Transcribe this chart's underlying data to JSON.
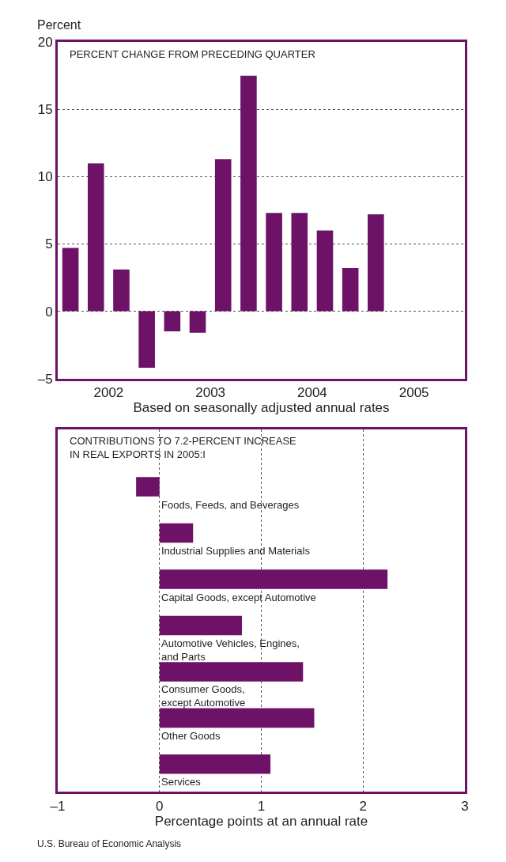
{
  "chart_data": [
    {
      "type": "bar",
      "title": "PERCENT CHANGE FROM PRECEDING QUARTER",
      "ylabel": "Percent",
      "xlabel": "Based on seasonally adjusted annual rates",
      "x": [
        2002.125,
        2002.375,
        2002.625,
        2002.875,
        2003.125,
        2003.375,
        2003.625,
        2003.875,
        2004.125,
        2004.375,
        2004.625,
        2004.875,
        2005.125
      ],
      "values": [
        4.7,
        11.0,
        3.1,
        -4.2,
        -1.5,
        -1.6,
        11.3,
        17.5,
        7.3,
        7.3,
        6.0,
        3.2,
        7.2
      ],
      "color": "#6d1266",
      "xlim": [
        2002,
        2006
      ],
      "xticks": [
        {
          "value": 2002.5,
          "label": "2002"
        },
        {
          "value": 2003.5,
          "label": "2003"
        },
        {
          "value": 2004.5,
          "label": "2004"
        },
        {
          "value": 2005.5,
          "label": "2005"
        }
      ],
      "ylim": [
        -5,
        20
      ],
      "yticks": [
        {
          "value": -5,
          "label": "–5"
        },
        0,
        5,
        10,
        15,
        20
      ],
      "grid": "y"
    },
    {
      "type": "bar",
      "orientation": "horizontal",
      "title": "CONTRIBUTIONS TO 7.2-PERCENT INCREASE\nIN REAL EXPORTS IN 2005:I",
      "xlabel": "Percentage points at an annual rate",
      "categories": [
        "Foods, Feeds, and Beverages",
        "Industrial Supplies and Materials",
        "Capital Goods, except Automotive",
        "Automotive Vehicles, Engines,\nand Parts",
        "Consumer Goods,\nexcept Automotive",
        "Other Goods",
        "Services"
      ],
      "values": [
        -0.23,
        0.33,
        2.24,
        0.81,
        1.41,
        1.52,
        1.09
      ],
      "color": "#6d1266",
      "xlim": [
        -1,
        3
      ],
      "xticks": [
        {
          "value": -1,
          "label": "–1"
        },
        0,
        1,
        2,
        3
      ],
      "grid": "x",
      "annotations": [
        "U.S. Bureau of Economic Analysis"
      ]
    }
  ]
}
